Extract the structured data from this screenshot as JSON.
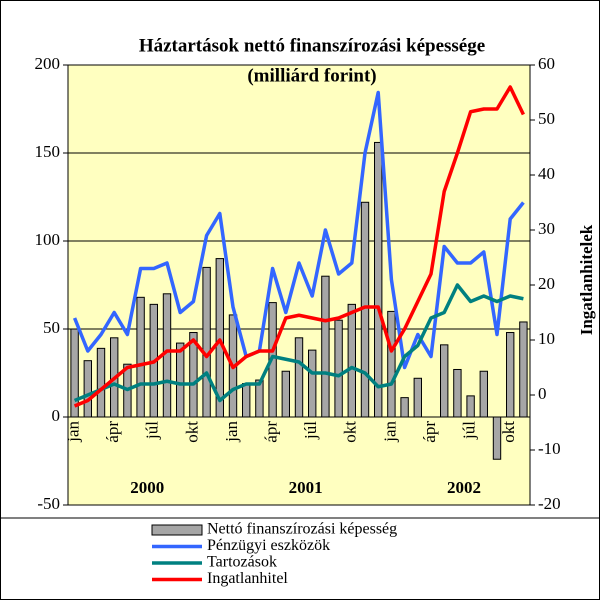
{
  "chart_data": {
    "type": "bar",
    "title": "Háztartások nettó finanszírozási képessége",
    "subtitle": "(milliárd forint)",
    "y2label": "Ingatlanhitelek",
    "categories": [
      "jan",
      null,
      null,
      "ápr",
      null,
      null,
      "júl",
      null,
      null,
      "okt",
      null,
      null,
      "jan",
      null,
      null,
      "ápr",
      null,
      null,
      "júl",
      null,
      null,
      "okt",
      null,
      null,
      "jan",
      null,
      null,
      "ápr",
      null,
      null,
      "júl",
      null,
      null,
      "okt",
      null
    ],
    "annotations": [
      "2000",
      "2001",
      "2002"
    ],
    "ylim": [
      -50,
      200
    ],
    "yticks": [
      -50,
      0,
      50,
      100,
      150,
      200
    ],
    "y2lim": [
      -20,
      60
    ],
    "y2ticks": [
      -20,
      -10,
      0,
      10,
      20,
      30,
      40,
      50,
      60
    ],
    "grid": true,
    "background": "#ffffc0",
    "series": [
      {
        "name": "Nettó finanszírozási képesség",
        "type": "bar",
        "color": "#a6a6a6",
        "values": [
          50,
          32,
          39,
          45,
          30,
          68,
          64,
          70,
          42,
          48,
          85,
          90,
          58,
          19,
          21,
          65,
          26,
          45,
          38,
          80,
          55,
          64,
          122,
          156,
          60,
          11,
          22,
          0,
          41,
          27,
          12,
          26,
          -24,
          48,
          54
        ]
      },
      {
        "name": "Pénzügyi eszközök",
        "type": "line",
        "axis": "y2",
        "color": "#3366ff",
        "values": [
          14,
          8,
          11,
          15,
          11,
          23,
          23,
          24,
          15,
          17,
          29,
          33,
          16,
          7,
          8,
          23,
          15,
          24,
          18,
          30,
          22,
          24,
          44,
          55,
          21,
          5,
          11,
          7,
          27,
          24,
          24,
          26,
          11,
          32,
          35
        ]
      },
      {
        "name": "Tartozások",
        "type": "line",
        "axis": "y2",
        "color": "#008080",
        "values": [
          -1,
          0,
          1,
          2,
          1,
          2,
          2,
          2.5,
          2,
          2,
          4,
          -1,
          1,
          2,
          2,
          7,
          6.5,
          6,
          4,
          4,
          3.5,
          5,
          4,
          1.5,
          2,
          7,
          9,
          14,
          15,
          20,
          17,
          18,
          17,
          18,
          17.5
        ]
      },
      {
        "name": "Ingatlanhitel",
        "type": "line",
        "axis": "y2",
        "color": "#ff0000",
        "values": [
          -2,
          -1,
          1,
          3,
          5,
          5.5,
          6,
          8,
          8,
          10,
          7,
          10,
          5,
          7,
          8,
          8,
          14,
          14.5,
          14,
          13.5,
          14,
          15,
          16,
          16,
          8,
          12,
          17,
          22,
          37,
          44,
          51.5,
          52,
          52,
          56,
          51
        ]
      }
    ]
  }
}
